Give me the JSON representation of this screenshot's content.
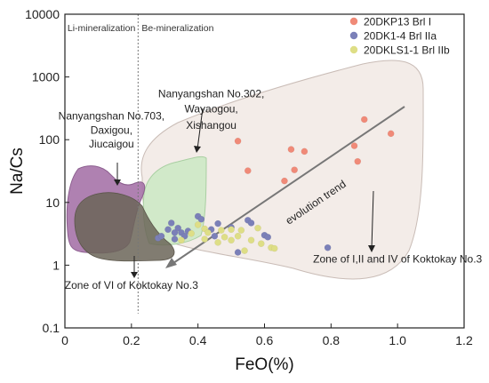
{
  "chart_data": {
    "type": "scatter",
    "title": "",
    "xlabel": "FeO(%)",
    "ylabel": "Na/Cs",
    "xlim": [
      0,
      1.2
    ],
    "ylim": [
      0.1,
      10000
    ],
    "yscale": "log",
    "xticks": [
      "0",
      "0.2",
      "0.4",
      "0.6",
      "0.8",
      "1.0",
      "1.2"
    ],
    "yticks": [
      "0.1",
      "1",
      "10",
      "100",
      "1000",
      "10000"
    ],
    "legend_position": "top-right",
    "divider": {
      "x": 0.22,
      "left_label": "Li-mineralization",
      "right_label": "Be-mineralization"
    },
    "series": [
      {
        "name": "20DKP13 Brl I",
        "color": "#f08a78",
        "points": [
          [
            0.52,
            95
          ],
          [
            0.55,
            32
          ],
          [
            0.66,
            22
          ],
          [
            0.68,
            70
          ],
          [
            0.69,
            33
          ],
          [
            0.72,
            65
          ],
          [
            0.87,
            80
          ],
          [
            0.88,
            45
          ],
          [
            0.9,
            210
          ],
          [
            0.98,
            125
          ]
        ]
      },
      {
        "name": "20DK1-4 Brl IIa",
        "color": "#7b80b8",
        "points": [
          [
            0.28,
            2.7
          ],
          [
            0.29,
            2.9
          ],
          [
            0.31,
            3.7
          ],
          [
            0.32,
            4.7
          ],
          [
            0.33,
            3.3
          ],
          [
            0.33,
            2.6
          ],
          [
            0.34,
            3.9
          ],
          [
            0.35,
            3.3
          ],
          [
            0.36,
            2.9
          ],
          [
            0.37,
            3.5
          ],
          [
            0.4,
            6
          ],
          [
            0.41,
            5.4
          ],
          [
            0.44,
            3.7
          ],
          [
            0.45,
            2.9
          ],
          [
            0.46,
            4.6
          ],
          [
            0.5,
            4
          ],
          [
            0.52,
            1.6
          ],
          [
            0.55,
            5.2
          ],
          [
            0.56,
            4.7
          ],
          [
            0.6,
            3
          ],
          [
            0.61,
            2.8
          ],
          [
            0.79,
            1.9
          ]
        ]
      },
      {
        "name": "20DKLS1-1 Brl IIb",
        "color": "#dede86",
        "points": [
          [
            0.35,
            2.5
          ],
          [
            0.38,
            3.2
          ],
          [
            0.4,
            4.4
          ],
          [
            0.42,
            3.8
          ],
          [
            0.42,
            2.6
          ],
          [
            0.43,
            3.3
          ],
          [
            0.46,
            2.3
          ],
          [
            0.47,
            3.6
          ],
          [
            0.48,
            2.8
          ],
          [
            0.5,
            3.7
          ],
          [
            0.5,
            2.5
          ],
          [
            0.52,
            2.9
          ],
          [
            0.53,
            3.6
          ],
          [
            0.54,
            1.7
          ],
          [
            0.56,
            2.5
          ],
          [
            0.58,
            3.9
          ],
          [
            0.59,
            2.2
          ],
          [
            0.62,
            1.9
          ],
          [
            0.63,
            1.85
          ]
        ]
      }
    ],
    "annotations": [
      {
        "text": "Nanyangshan No.302,",
        "x": 0.44,
        "y": 470
      },
      {
        "text": "Wayaogou,",
        "x": 0.44,
        "y": 270
      },
      {
        "text": "Xishangou",
        "x": 0.44,
        "y": 150
      },
      {
        "text": "Nanyangshan No.703,",
        "x": 0.14,
        "y": 210
      },
      {
        "text": "Daxigou,",
        "x": 0.14,
        "y": 125
      },
      {
        "text": "Jiucaigou",
        "x": 0.14,
        "y": 75
      },
      {
        "text": "evolution trend",
        "x": 0.76,
        "y": 9,
        "rotate": -34
      },
      {
        "text": "Zone of I,II and IV of Koktokay No.3",
        "x": 1.0,
        "y": 1.1
      },
      {
        "text": "Zone of  VI of Koktokay No.3",
        "x": 0.2,
        "y": 0.42
      }
    ],
    "regions": [
      {
        "label": "Zone of I,II and IV of Koktokay No.3",
        "color": "#f3ece8"
      },
      {
        "label": "Nanyangshan No.302, Wayaogou, Xishangou",
        "color": "#cde9c5"
      },
      {
        "label": "Nanyangshan No.703, Daxigou, Jiucaigou",
        "color": "#a673a8"
      },
      {
        "label": "Zone of VI of Koktokay No.3",
        "color": "#6b6558"
      }
    ]
  }
}
